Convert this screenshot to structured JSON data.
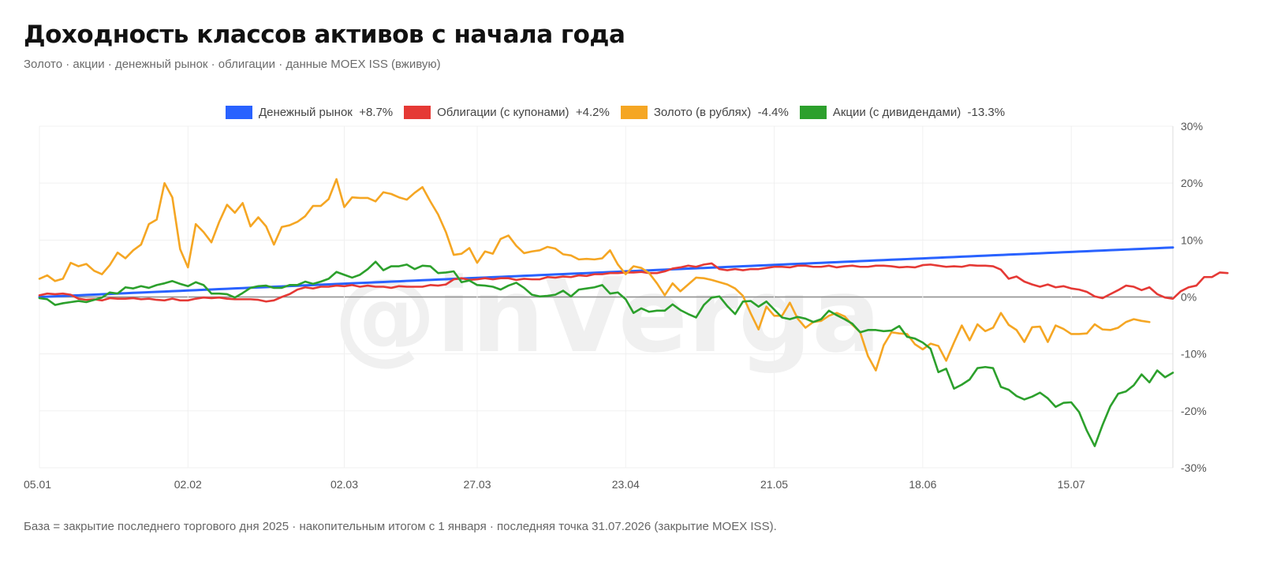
{
  "title": "Доходность классов активов с начала года",
  "subtitle": "Золото · акции · денежный рынок · облигации · данные MOEX ISS (вживую)",
  "footer": "База = закрытие последнего торгового дня 2025 · накопительным итогом с 1 января · последняя точка 31.07.2026 (закрытие MOEX ISS).",
  "watermark": "@inVerga",
  "legend": [
    {
      "label": "Денежный рынок  +8.7%",
      "color": "#2962ff"
    },
    {
      "label": "Облигации (с купонами)  +4.2%",
      "color": "#e53935"
    },
    {
      "label": "Золото (в рублях)  -4.4%",
      "color": "#f5a623"
    },
    {
      "label": "Акции (с дивидендами)  -13.3%",
      "color": "#2ca02c"
    }
  ],
  "chart_data": {
    "type": "line",
    "title": "Доходность классов активов с начала года",
    "ylim": [
      -30,
      30
    ],
    "y_ticks": [
      30,
      20,
      10,
      0,
      -10,
      -20,
      -30
    ],
    "y_tick_labels": [
      "30%",
      "20%",
      "10%",
      "0%",
      "-10%",
      "-20%",
      "-30%"
    ],
    "x_ticks": [
      0,
      19,
      39,
      56,
      75,
      94,
      113,
      132
    ],
    "x_tick_labels": [
      "05.01",
      "02.02",
      "02.03",
      "27.03",
      "23.04",
      "21.05",
      "18.06",
      "15.07"
    ],
    "x_range": [
      0,
      145
    ],
    "grid": true,
    "legend_position": "top-center",
    "series": [
      {
        "name": "Денежный рынок",
        "color": "#2962ff",
        "values": [
          0,
          0.06,
          0.12,
          0.18,
          0.24,
          0.3,
          0.36,
          0.42,
          0.48,
          0.54,
          0.6,
          0.66,
          0.72,
          0.78,
          0.84,
          0.9,
          0.96,
          1.02,
          1.08,
          1.14,
          1.2,
          1.26,
          1.32,
          1.38,
          1.44,
          1.5,
          1.56,
          1.62,
          1.68,
          1.74,
          1.8,
          1.86,
          1.92,
          1.98,
          2.04,
          2.1,
          2.16,
          2.22,
          2.28,
          2.34,
          2.4,
          2.46,
          2.52,
          2.58,
          2.64,
          2.7,
          2.76,
          2.82,
          2.88,
          2.94,
          3,
          3.06,
          3.12,
          3.18,
          3.24,
          3.3,
          3.36,
          3.42,
          3.48,
          3.54,
          3.6,
          3.66,
          3.72,
          3.78,
          3.84,
          3.9,
          3.96,
          4.02,
          4.08,
          4.14,
          4.2,
          4.26,
          4.32,
          4.38,
          4.44,
          4.5,
          4.56,
          4.62,
          4.68,
          4.74,
          4.8,
          4.86,
          4.92,
          4.98,
          5.04,
          5.1,
          5.16,
          5.22,
          5.28,
          5.34,
          5.4,
          5.46,
          5.52,
          5.58,
          5.64,
          5.7,
          5.76,
          5.82,
          5.88,
          5.94,
          6,
          6.06,
          6.12,
          6.18,
          6.24,
          6.3,
          6.36,
          6.42,
          6.48,
          6.54,
          6.6,
          6.66,
          6.72,
          6.78,
          6.84,
          6.9,
          6.96,
          7.02,
          7.08,
          7.14,
          7.2,
          7.26,
          7.32,
          7.38,
          7.44,
          7.5,
          7.56,
          7.62,
          7.68,
          7.74,
          7.8,
          7.86,
          7.92,
          7.98,
          8.04,
          8.1,
          8.16,
          8.22,
          8.28,
          8.34,
          8.4,
          8.46,
          8.52,
          8.58,
          8.64,
          8.7
        ]
      },
      {
        "name": "Облигации (с купонами)",
        "color": "#e53935",
        "values": [
          0.3,
          0.6,
          0.5,
          0.6,
          0.4,
          -0.3,
          -0.5,
          -0.4,
          -0.6,
          -0.2,
          -0.3,
          -0.3,
          -0.2,
          -0.4,
          -0.3,
          -0.5,
          -0.6,
          -0.3,
          -0.6,
          -0.6,
          -0.3,
          -0.1,
          -0.2,
          -0.1,
          -0.3,
          -0.4,
          -0.4,
          -0.4,
          -0.5,
          -0.8,
          -0.6,
          0,
          0.5,
          1.3,
          1.7,
          1.5,
          1.8,
          1.8,
          2,
          1.9,
          2.1,
          1.8,
          2,
          1.8,
          1.8,
          1.6,
          1.9,
          1.8,
          1.8,
          1.8,
          2.1,
          2,
          2.2,
          3.1,
          3.3,
          3,
          3.1,
          3.3,
          3.1,
          3.3,
          3.3,
          3,
          3.2,
          3.1,
          3.1,
          3.5,
          3.4,
          3.6,
          3.5,
          3.8,
          3.7,
          4,
          4,
          4.2,
          4.2,
          4.3,
          4.3,
          4.4,
          4.2,
          4.2,
          4.5,
          5,
          5.2,
          5.5,
          5.3,
          5.7,
          5.9,
          4.9,
          4.7,
          4.9,
          4.7,
          4.9,
          4.9,
          5.1,
          5.3,
          5.3,
          5.2,
          5.5,
          5.5,
          5.3,
          5.3,
          5.5,
          5.2,
          5.4,
          5.5,
          5.3,
          5.3,
          5.5,
          5.5,
          5.4,
          5.2,
          5.3,
          5.2,
          5.6,
          5.7,
          5.5,
          5.3,
          5.4,
          5.3,
          5.6,
          5.5,
          5.5,
          5.4,
          4.8,
          3.2,
          3.6,
          2.7,
          2.2,
          1.8,
          2.2,
          1.7,
          1.9,
          1.5,
          1.3,
          0.9,
          0.1,
          -0.2,
          0.5,
          1.2,
          2,
          1.8,
          1.2,
          1.7,
          0.5,
          -0.1,
          -0.3,
          1,
          1.7,
          2,
          3.5,
          3.5,
          4.3,
          4.2
        ]
      },
      {
        "name": "Золото (в рублях)",
        "color": "#f5a623",
        "values": [
          3.2,
          3.8,
          2.8,
          3.2,
          6,
          5.4,
          5.8,
          4.6,
          4,
          5.6,
          7.8,
          6.8,
          8.2,
          9.2,
          12.8,
          13.6,
          20,
          17.5,
          8.4,
          5.2,
          12.8,
          11.4,
          9.6,
          13.2,
          16.2,
          14.8,
          16.5,
          12.4,
          14,
          12.4,
          9.2,
          12.3,
          12.6,
          13.2,
          14.2,
          16,
          16,
          17.2,
          20.7,
          15.8,
          17.5,
          17.4,
          17.4,
          16.8,
          18.4,
          18.1,
          17.5,
          17.1,
          18.3,
          19.3,
          16.8,
          14.5,
          11.4,
          7.4,
          7.6,
          8.6,
          6,
          8,
          7.6,
          10.2,
          10.8,
          9,
          7.7,
          8,
          8.2,
          8.8,
          8.5,
          7.5,
          7.3,
          6.6,
          6.7,
          6.6,
          6.8,
          8.2,
          5.7,
          4,
          5.4,
          5.1,
          4.2,
          2.4,
          0.3,
          2.4,
          1,
          2.2,
          3.4,
          3.3,
          3,
          2.6,
          2.2,
          1.5,
          0.2,
          -2.9,
          -5.7,
          -1.7,
          -3.3,
          -3.3,
          -1,
          -3.8,
          -5.4,
          -4.4,
          -4.2,
          -3.3,
          -2.8,
          -3.4,
          -4.9,
          -6.2,
          -10.4,
          -12.9,
          -8.5,
          -6.2,
          -6.4,
          -6.5,
          -8.3,
          -9.2,
          -8.2,
          -8.6,
          -11.2,
          -8,
          -5,
          -7.6,
          -4.8,
          -6,
          -5.4,
          -2.8,
          -4.9,
          -5.8,
          -7.9,
          -5.3,
          -5.2,
          -7.9,
          -5,
          -5.6,
          -6.5,
          -6.5,
          -6.4,
          -4.8,
          -5.7,
          -5.8,
          -5.4,
          -4.4,
          -3.9,
          -4.2,
          -4.4
        ]
      },
      {
        "name": "Акции (с дивидендами)",
        "color": "#2ca02c",
        "values": [
          -0.2,
          -0.4,
          -1.4,
          -1.1,
          -0.9,
          -0.7,
          -0.9,
          -0.5,
          -0.1,
          0.8,
          0.6,
          1.7,
          1.5,
          1.9,
          1.6,
          2.1,
          2.4,
          2.8,
          2.3,
          1.9,
          2.6,
          2.1,
          0.6,
          0.6,
          0.5,
          -0.1,
          0.7,
          1.6,
          1.9,
          2,
          1.6,
          1.6,
          2.1,
          2.1,
          2.7,
          2.3,
          2.7,
          3.2,
          4.4,
          3.9,
          3.4,
          3.9,
          4.9,
          6.2,
          4.7,
          5.4,
          5.4,
          5.7,
          4.9,
          5.5,
          5.4,
          4.2,
          4.3,
          4.5,
          2.6,
          2.9,
          2.1,
          2,
          1.8,
          1.3,
          2,
          2.5,
          1.6,
          0.4,
          0.1,
          0.2,
          0.4,
          1.1,
          0.1,
          1.3,
          1.5,
          1.7,
          2.1,
          0.6,
          0.8,
          -0.4,
          -2.8,
          -2,
          -2.6,
          -2.4,
          -2.4,
          -1.3,
          -2.3,
          -3,
          -3.6,
          -1.4,
          -0.1,
          0.1,
          -1.6,
          -3,
          -0.8,
          -0.7,
          -1.7,
          -0.8,
          -2.2,
          -3.6,
          -3.9,
          -3.5,
          -3.8,
          -4.4,
          -3.9,
          -2.4,
          -3.2,
          -3.9,
          -4.7,
          -6.2,
          -5.8,
          -5.8,
          -6,
          -5.9,
          -5.1,
          -7,
          -7.3,
          -8,
          -9.1,
          -13.2,
          -12.6,
          -16.1,
          -15.4,
          -14.5,
          -12.5,
          -12.3,
          -12.5,
          -15.8,
          -16.3,
          -17.4,
          -18,
          -17.5,
          -16.8,
          -17.8,
          -19.3,
          -18.6,
          -18.5,
          -20.2,
          -23.5,
          -26.2,
          -22.5,
          -19.2,
          -17,
          -16.6,
          -15.5,
          -13.6,
          -15,
          -12.9,
          -14.1,
          -13.3
        ]
      }
    ]
  }
}
